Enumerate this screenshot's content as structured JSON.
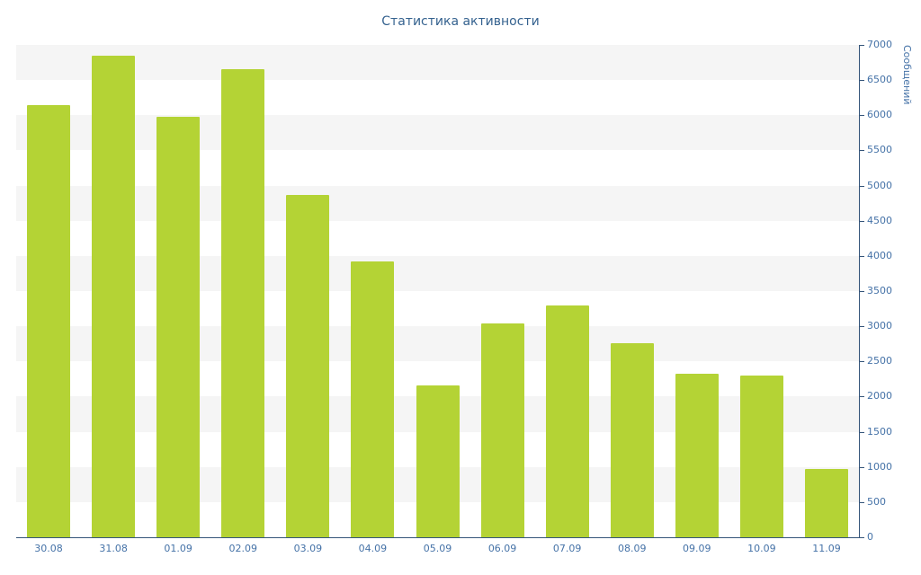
{
  "chart_data": {
    "type": "bar",
    "title": "Статистика активности",
    "xlabel": "",
    "ylabel": "Сообщений",
    "categories": [
      "30.08",
      "31.08",
      "01.09",
      "02.09",
      "03.09",
      "04.09",
      "05.09",
      "06.09",
      "07.09",
      "08.09",
      "09.09",
      "10.09",
      "11.09"
    ],
    "values": [
      6150,
      6850,
      5980,
      6650,
      4870,
      3920,
      2160,
      3040,
      3300,
      2760,
      2320,
      2300,
      970
    ],
    "ylim": [
      0,
      7000
    ],
    "ytick_step": 500,
    "yticks": [
      0,
      500,
      1000,
      1500,
      2000,
      2500,
      3000,
      3500,
      4000,
      4500,
      5000,
      5500,
      6000,
      6500,
      7000
    ],
    "grid": "alternating-bands",
    "legend": "none",
    "colors": {
      "bar": "#b4d335",
      "text": "#4572a7",
      "title": "#35628f",
      "axis_line": "#35557a",
      "stripe": "#f5f5f5",
      "background": "#ffffff"
    }
  }
}
